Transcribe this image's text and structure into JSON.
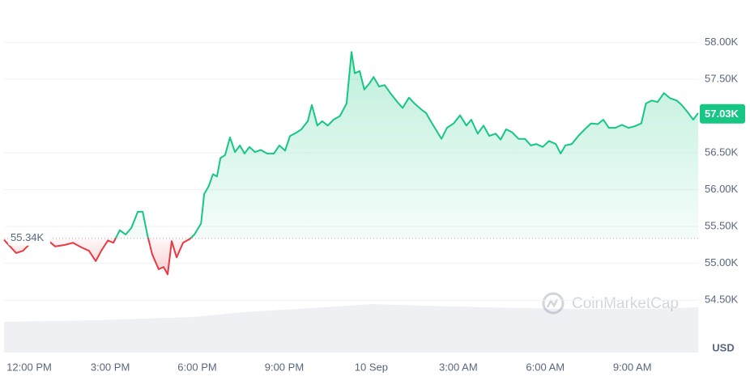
{
  "chart_data": {
    "type": "line",
    "x": [
      -0.66,
      -0.57,
      -0.24,
      -0.01,
      0.32,
      0.74,
      1.1,
      1.44,
      1.72,
      1.99,
      2.27,
      2.5,
      2.69,
      2.92,
      3.11,
      3.33,
      3.53,
      3.73,
      3.95,
      4.12,
      4.28,
      4.45,
      4.67,
      4.84,
      4.98,
      5.12,
      5.29,
      5.51,
      5.74,
      5.9,
      6.13,
      6.24,
      6.4,
      6.54,
      6.68,
      6.8,
      6.96,
      7.13,
      7.3,
      7.47,
      7.63,
      7.8,
      7.99,
      8.19,
      8.41,
      8.64,
      8.83,
      9.03,
      9.2,
      9.4,
      9.59,
      9.81,
      9.95,
      10.14,
      10.31,
      10.5,
      10.7,
      10.92,
      11.15,
      11.32,
      11.43,
      11.6,
      11.76,
      11.93,
      12.08,
      12.27,
      12.46,
      12.66,
      12.88,
      13.08,
      13.3,
      13.49,
      13.72,
      13.89,
      14.05,
      14.22,
      14.42,
      14.61,
      14.84,
      15.06,
      15.28,
      15.45,
      15.67,
      15.87,
      16.07,
      16.29,
      16.46,
      16.65,
      16.85,
      17.08,
      17.3,
      17.5,
      17.69,
      17.91,
      18.13,
      18.36,
      18.53,
      18.69,
      18.91,
      19.14,
      19.36,
      19.58,
      19.81,
      20.0,
      20.19,
      20.42,
      20.64,
      20.87,
      21.08,
      21.31,
      21.47,
      21.67,
      21.87,
      22.09,
      22.31,
      22.53,
      22.7,
      22.93,
      23.1,
      23.27
    ],
    "values": [
      55320,
      55280,
      55140,
      55170,
      55300,
      55350,
      55230,
      55250,
      55280,
      55220,
      55170,
      55030,
      55170,
      55310,
      55280,
      55450,
      55390,
      55480,
      55700,
      55700,
      55390,
      55120,
      54920,
      54950,
      54850,
      55300,
      55080,
      55280,
      55330,
      55390,
      55540,
      55940,
      56050,
      56210,
      56180,
      56430,
      56470,
      56710,
      56510,
      56600,
      56490,
      56580,
      56510,
      56540,
      56490,
      56490,
      56600,
      56530,
      56730,
      56770,
      56820,
      56930,
      57150,
      56870,
      56930,
      56870,
      56950,
      57000,
      57170,
      57870,
      57580,
      57610,
      57360,
      57440,
      57530,
      57400,
      57420,
      57310,
      57200,
      57110,
      57250,
      57170,
      57090,
      57040,
      56930,
      56820,
      56690,
      56840,
      56900,
      57010,
      56870,
      56950,
      56760,
      56870,
      56730,
      56760,
      56680,
      56820,
      56780,
      56690,
      56690,
      56600,
      56620,
      56580,
      56660,
      56620,
      56490,
      56600,
      56620,
      56730,
      56820,
      56900,
      56890,
      56950,
      56840,
      56840,
      56880,
      56840,
      56860,
      56900,
      57170,
      57210,
      57190,
      57310,
      57240,
      57210,
      57150,
      57040,
      56950,
      57040
    ],
    "up_color": "#16c784",
    "down_color": "#ea3943",
    "baseline": {
      "value": 55340,
      "label": "55.34K"
    },
    "last_price": {
      "value": 57030,
      "label": "57.03K"
    },
    "xlim": [
      -0.66,
      23.27
    ],
    "xticks": [
      {
        "value": 0,
        "label": "12:00 PM"
      },
      {
        "value": 3,
        "label": "3:00 PM"
      },
      {
        "value": 6,
        "label": "6:00 PM"
      },
      {
        "value": 9,
        "label": "9:00 PM"
      },
      {
        "value": 12,
        "label": "10 Sep"
      },
      {
        "value": 15,
        "label": "3:00 AM"
      },
      {
        "value": 18,
        "label": "6:00 AM"
      },
      {
        "value": 21,
        "label": "9:00 AM"
      }
    ],
    "ylim": [
      53800,
      58520
    ],
    "yticks": [
      {
        "value": 58000,
        "label": "58.00K"
      },
      {
        "value": 57500,
        "label": "57.50K"
      },
      {
        "value": 56500,
        "label": "56.50K"
      },
      {
        "value": 56000,
        "label": "56.00K"
      },
      {
        "value": 55500,
        "label": "55.50K"
      },
      {
        "value": 55000,
        "label": "55.00K"
      },
      {
        "value": 54500,
        "label": "54.50K"
      }
    ],
    "y_unit": "USD",
    "watermark": "CoinMarketCap",
    "grid": true
  }
}
